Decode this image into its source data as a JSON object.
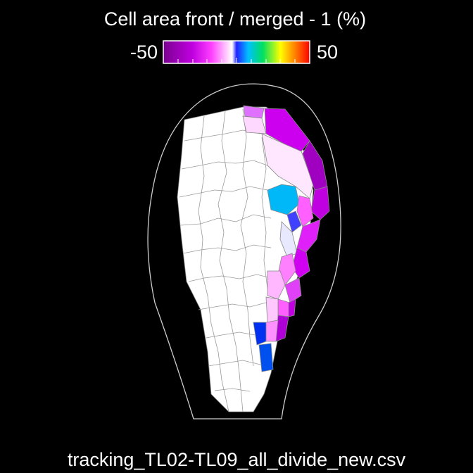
{
  "title": "Cell area front / merged  - 1 (%)",
  "colorbar": {
    "min": -50,
    "max": 50
  },
  "footer": "tracking_TL02-TL09_all_divide_new.csv"
}
